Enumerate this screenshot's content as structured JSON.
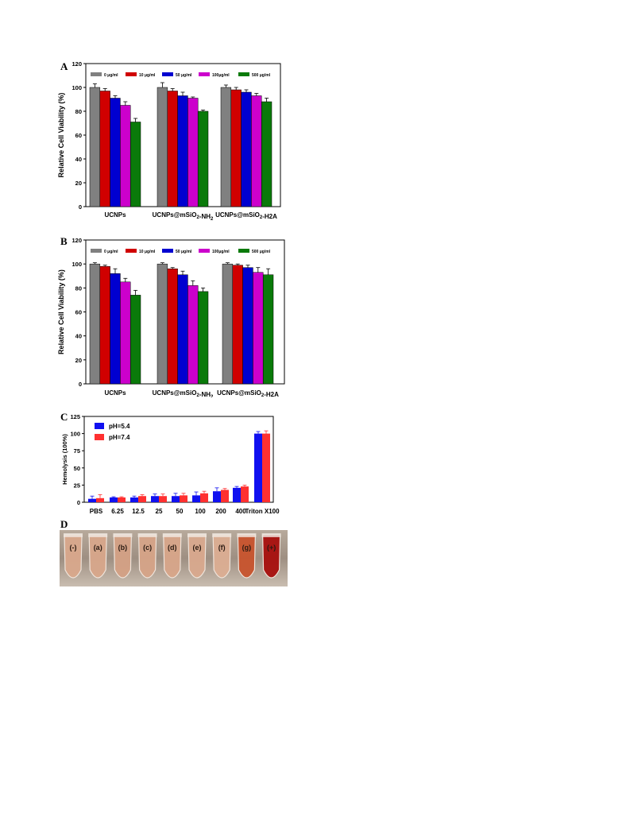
{
  "panels": {
    "a": "A",
    "b": "B",
    "c": "C",
    "d": "D"
  },
  "colors": {
    "c0": "#808080",
    "c10": "#d00000",
    "c50": "#0000d0",
    "c100": "#cc00cc",
    "c500": "#0a7a0a",
    "ph54": "#1010f0",
    "ph74": "#ff3030"
  },
  "chart_data": [
    {
      "type": "bar",
      "panel": "A",
      "ylabel": "Relative Cell Viability (%)",
      "ylim": [
        0,
        120
      ],
      "yticks": [
        0,
        20,
        40,
        60,
        80,
        100,
        120
      ],
      "categories": [
        "UCNPs",
        "UCNPs@mSiO2-NH2",
        "UCNPs@mSiO2-H2A"
      ],
      "series": [
        {
          "name": "0 μg/ml",
          "values": [
            100,
            100,
            100
          ],
          "errors": [
            3,
            4,
            2
          ]
        },
        {
          "name": "10 μg/ml",
          "values": [
            97,
            97,
            98
          ],
          "errors": [
            2,
            2,
            2
          ]
        },
        {
          "name": "50 μg/ml",
          "values": [
            91,
            93,
            96
          ],
          "errors": [
            2,
            3,
            2
          ]
        },
        {
          "name": "100μg/ml",
          "values": [
            85,
            91,
            93
          ],
          "errors": [
            3,
            1,
            2
          ]
        },
        {
          "name": "500 μg/ml",
          "values": [
            71,
            80,
            88
          ],
          "errors": [
            3,
            1,
            3
          ]
        }
      ],
      "legend": "top"
    },
    {
      "type": "bar",
      "panel": "B",
      "ylabel": "Relative Cell Viability (%)",
      "ylim": [
        0,
        120
      ],
      "yticks": [
        0,
        20,
        40,
        60,
        80,
        100,
        120
      ],
      "categories": [
        "UCNPs",
        "UCNPs@mSiO2-NH2",
        "UCNPs@mSiO2-H2A"
      ],
      "series": [
        {
          "name": "0 μg/ml",
          "values": [
            100,
            100,
            100
          ],
          "errors": [
            1,
            1,
            1
          ]
        },
        {
          "name": "10 μg/ml",
          "values": [
            98,
            96,
            99
          ],
          "errors": [
            1,
            1,
            1
          ]
        },
        {
          "name": "50 μg/ml",
          "values": [
            92,
            91,
            97
          ],
          "errors": [
            4,
            3,
            2
          ]
        },
        {
          "name": "100μg/ml",
          "values": [
            85,
            82,
            93
          ],
          "errors": [
            3,
            4,
            4
          ]
        },
        {
          "name": "500 μg/ml",
          "values": [
            74,
            77,
            91
          ],
          "errors": [
            4,
            3,
            5
          ]
        }
      ],
      "legend": "top"
    },
    {
      "type": "bar",
      "panel": "C",
      "ylabel": "Hemolysis (100%)",
      "ylim": [
        0,
        125
      ],
      "yticks": [
        0,
        25,
        50,
        75,
        100,
        125
      ],
      "categories": [
        "PBS",
        "6.25",
        "12.5",
        "25",
        "50",
        "100",
        "200",
        "400",
        "Triton X100"
      ],
      "series": [
        {
          "name": "pH=5.4",
          "values": [
            5,
            7,
            7,
            9,
            9,
            10,
            16,
            21,
            100
          ],
          "errors": [
            4,
            1,
            2,
            3,
            4,
            5,
            5,
            2,
            3
          ]
        },
        {
          "name": "pH=7.4",
          "values": [
            6,
            7,
            9,
            9,
            10,
            13,
            18,
            23,
            100
          ],
          "errors": [
            5,
            1,
            2,
            3,
            3,
            3,
            2,
            2,
            4
          ]
        }
      ],
      "legend": "top-left"
    }
  ],
  "photo": {
    "tube_labels": [
      "(-)",
      "(a)",
      "(b)",
      "(c)",
      "(d)",
      "(e)",
      "(f)",
      "(g)",
      "(+)"
    ]
  }
}
